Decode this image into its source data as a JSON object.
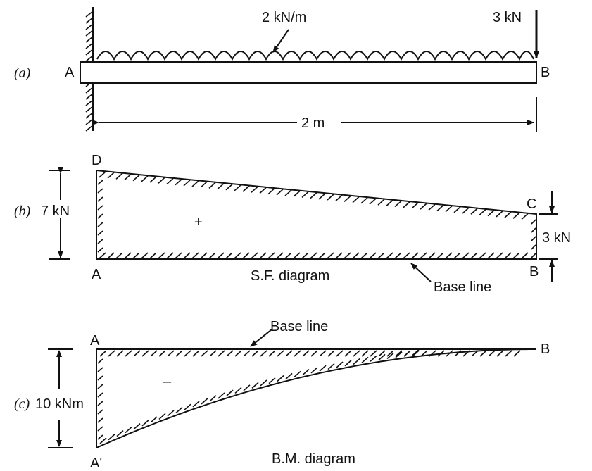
{
  "part_a": {
    "tag": "(a)",
    "end_left": "A",
    "end_right": "B",
    "udl_label": "2 kN/m",
    "point_load_label": "3 kN",
    "span_label": "2 m"
  },
  "part_b": {
    "tag": "(b)",
    "left_magnitude": "7 kN",
    "right_magnitude": "3 kN",
    "point_d": "D",
    "point_c": "C",
    "point_a": "A",
    "point_b": "B",
    "sign": "+",
    "title": "S.F. diagram",
    "base_line_label": "Base line"
  },
  "part_c": {
    "tag": "(c)",
    "magnitude": "10 kNm",
    "point_a": "A",
    "point_a_prime": "A'",
    "point_b": "B",
    "sign": "–",
    "base_line_label": "Base line",
    "title": "B.M. diagram"
  }
}
